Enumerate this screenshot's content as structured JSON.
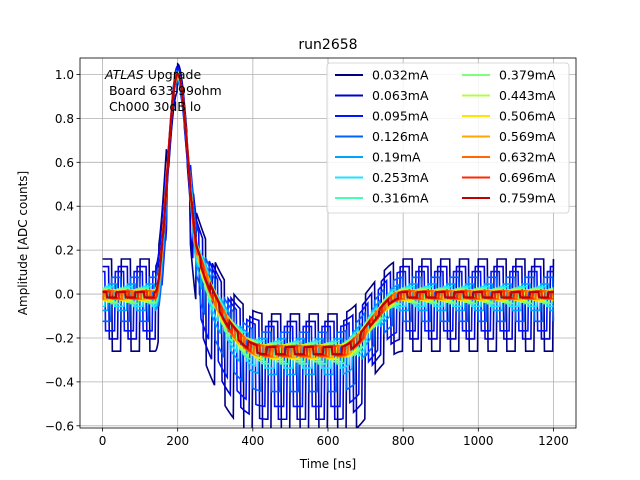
{
  "chart_data": {
    "type": "line",
    "title": "run2658",
    "xlabel": "Time [ns]",
    "ylabel": "Amplitude [ADC counts]",
    "xlim": [
      -60,
      1260
    ],
    "ylim": [
      -0.61,
      1.075
    ],
    "grid": true,
    "legend_position": "top-right",
    "legend_columns": 2,
    "x_ticks": [
      0,
      200,
      400,
      600,
      800,
      1000,
      1200
    ],
    "x_tick_labels": [
      "0",
      "200",
      "400",
      "600",
      "800",
      "1000",
      "1200"
    ],
    "y_ticks": [
      -0.6,
      -0.4,
      -0.2,
      0.0,
      0.2,
      0.4,
      0.6,
      0.8,
      1.0
    ],
    "y_tick_labels": [
      "−0.6",
      "−0.4",
      "−0.2",
      "0.0",
      "0.2",
      "0.4",
      "0.6",
      "0.8",
      "1.0"
    ],
    "annotation": {
      "italic": "ATLAS",
      "rest": " Upgrade",
      "line2": " Board 633-99ohm",
      "line3": " Ch000 30dB lo"
    },
    "pulse_shape": {
      "peak_x": 200,
      "peak_y": 1.0,
      "rise_start_x": 140,
      "undershoot_y": -0.25,
      "undershoot_start_x": 440,
      "undershoot_end_x": 630,
      "return_x": 800
    },
    "series": [
      {
        "name": "0.032mA",
        "color": "#00007f",
        "noise": 0.42
      },
      {
        "name": "0.063mA",
        "color": "#0000d6",
        "noise": 0.33
      },
      {
        "name": "0.095mA",
        "color": "#0012ff",
        "noise": 0.27
      },
      {
        "name": "0.126mA",
        "color": "#0062ff",
        "noise": 0.2
      },
      {
        "name": "0.19mA",
        "color": "#00a4ff",
        "noise": 0.12
      },
      {
        "name": "0.253mA",
        "color": "#1ce3ff",
        "noise": 0.09
      },
      {
        "name": "0.316mA",
        "color": "#46ffb0",
        "noise": 0.07
      },
      {
        "name": "0.379mA",
        "color": "#7cff79",
        "noise": 0.06
      },
      {
        "name": "0.443mA",
        "color": "#b0ff46",
        "noise": 0.05
      },
      {
        "name": "0.506mA",
        "color": "#ffe600",
        "noise": 0.045
      },
      {
        "name": "0.569mA",
        "color": "#ffa700",
        "noise": 0.04
      },
      {
        "name": "0.632mA",
        "color": "#ff6800",
        "noise": 0.035
      },
      {
        "name": "0.696mA",
        "color": "#ff2900",
        "noise": 0.03
      },
      {
        "name": "0.759mA",
        "color": "#c30000",
        "noise": 0.025
      }
    ]
  }
}
